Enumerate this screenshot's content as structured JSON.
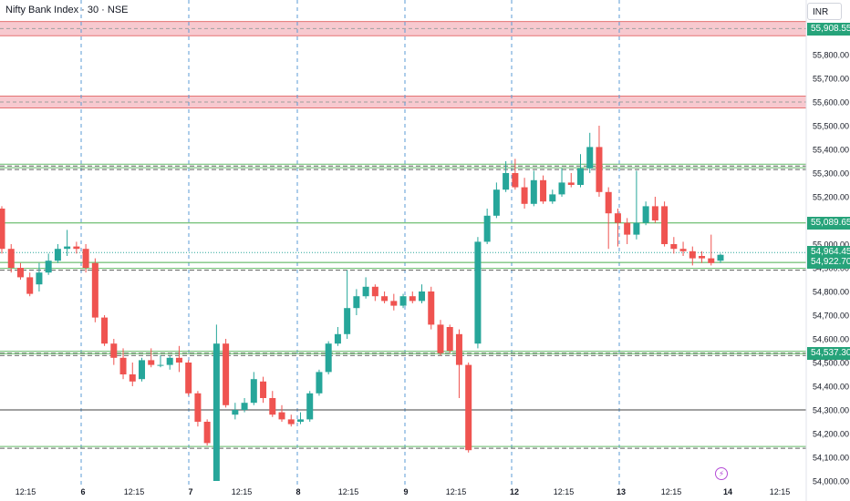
{
  "header": {
    "title": "Nifty Bank Index · 30 · NSE",
    "currency": "INR"
  },
  "chart_data": {
    "type": "candlestick",
    "title": "Nifty Bank Index · 30 · NSE",
    "ylim": [
      54000,
      55980
    ],
    "y_ticks": [
      54000,
      54100,
      54200,
      54300,
      54400,
      54500,
      54600,
      54700,
      54800,
      54900,
      55000,
      55100,
      55200,
      55300,
      55400,
      55500,
      55600,
      55700,
      55800
    ],
    "y_tick_labels": [
      "54,000.00",
      "54,100.00",
      "54,200.00",
      "54,300.00",
      "54,400.00",
      "54,500.00",
      "54,600.00",
      "54,700.00",
      "54,800.00",
      "54,900.00",
      "55,000.00",
      "55,100.00",
      "55,200.00",
      "55,300.00",
      "55,400.00",
      "55,500.00",
      "55,600.00",
      "55,700.00",
      "55,800.00"
    ],
    "x_tick_labels": [
      "12:15",
      "6",
      "12:15",
      "7",
      "12:15",
      "8",
      "12:15",
      "9",
      "12:15",
      "12",
      "12:15",
      "13",
      "12:15",
      "14",
      "12:15"
    ],
    "day_labels": [
      "6",
      "7",
      "8",
      "9",
      "12",
      "13",
      "14"
    ],
    "price_labels": [
      {
        "text": "55,908.55",
        "value": 55908.55
      },
      {
        "text": "55,089.65",
        "value": 55089.65
      },
      {
        "text": "54,964.45",
        "value": 54964.45
      },
      {
        "text": "54,922.70",
        "value": 54922.7
      },
      {
        "text": "54,537.30",
        "value": 54537.3
      }
    ],
    "zones": [
      {
        "from": 55880,
        "to": 55940,
        "color": "#f7c9cf"
      },
      {
        "from": 55575,
        "to": 55625,
        "color": "#f7c9cf"
      }
    ],
    "levels_dashed": [
      55330,
      55315,
      54890,
      54540,
      54530,
      54138
    ],
    "levels_solid": [
      55089.65,
      54922.7,
      54300
    ],
    "current_line": 54964.45,
    "candles": [
      {
        "o": 55150,
        "h": 55160,
        "c": 54980,
        "l": 54960
      },
      {
        "o": 54980,
        "h": 55000,
        "c": 54900,
        "l": 54880
      },
      {
        "o": 54900,
        "h": 54920,
        "c": 54860,
        "l": 54850
      },
      {
        "o": 54860,
        "h": 54880,
        "c": 54790,
        "l": 54780
      },
      {
        "o": 54830,
        "h": 54920,
        "c": 54880,
        "l": 54800
      },
      {
        "o": 54880,
        "h": 54960,
        "c": 54930,
        "l": 54870
      },
      {
        "o": 54930,
        "h": 55000,
        "c": 54980,
        "l": 54920
      },
      {
        "o": 54980,
        "h": 55060,
        "c": 54990,
        "l": 54950
      },
      {
        "o": 54990,
        "h": 55010,
        "c": 54980,
        "l": 54960
      },
      {
        "o": 54980,
        "h": 55000,
        "c": 54900,
        "l": 54880
      },
      {
        "o": 54920,
        "h": 54940,
        "c": 54690,
        "l": 54670
      },
      {
        "o": 54690,
        "h": 54700,
        "c": 54580,
        "l": 54570
      },
      {
        "o": 54580,
        "h": 54600,
        "c": 54520,
        "l": 54490
      },
      {
        "o": 54520,
        "h": 54560,
        "c": 54450,
        "l": 54430
      },
      {
        "o": 54450,
        "h": 54500,
        "c": 54420,
        "l": 54400
      },
      {
        "o": 54430,
        "h": 54520,
        "c": 54510,
        "l": 54420
      },
      {
        "o": 54510,
        "h": 54560,
        "c": 54490,
        "l": 54480
      },
      {
        "o": 54490,
        "h": 54530,
        "c": 54490,
        "l": 54480
      },
      {
        "o": 54490,
        "h": 54530,
        "c": 54520,
        "l": 54470
      },
      {
        "o": 54520,
        "h": 54570,
        "c": 54500,
        "l": 54460
      },
      {
        "o": 54500,
        "h": 54510,
        "c": 54370,
        "l": 54360
      },
      {
        "o": 54370,
        "h": 54380,
        "c": 54250,
        "l": 54230
      },
      {
        "o": 54250,
        "h": 54260,
        "c": 54160,
        "l": 54150
      },
      {
        "o": 54000,
        "h": 54660,
        "c": 54580,
        "l": 54000
      },
      {
        "o": 54580,
        "h": 54600,
        "c": 54320,
        "l": 54310
      },
      {
        "o": 54280,
        "h": 54330,
        "c": 54300,
        "l": 54260
      },
      {
        "o": 54300,
        "h": 54350,
        "c": 54330,
        "l": 54290
      },
      {
        "o": 54330,
        "h": 54460,
        "c": 54430,
        "l": 54320
      },
      {
        "o": 54420,
        "h": 54440,
        "c": 54350,
        "l": 54330
      },
      {
        "o": 54350,
        "h": 54380,
        "c": 54280,
        "l": 54270
      },
      {
        "o": 54290,
        "h": 54320,
        "c": 54260,
        "l": 54250
      },
      {
        "o": 54260,
        "h": 54280,
        "c": 54240,
        "l": 54230
      },
      {
        "o": 54250,
        "h": 54290,
        "c": 54260,
        "l": 54240
      },
      {
        "o": 54260,
        "h": 54380,
        "c": 54370,
        "l": 54250
      },
      {
        "o": 54370,
        "h": 54470,
        "c": 54460,
        "l": 54360
      },
      {
        "o": 54460,
        "h": 54590,
        "c": 54580,
        "l": 54450
      },
      {
        "o": 54580,
        "h": 54650,
        "c": 54620,
        "l": 54570
      },
      {
        "o": 54620,
        "h": 54890,
        "c": 54730,
        "l": 54600
      },
      {
        "o": 54730,
        "h": 54810,
        "c": 54780,
        "l": 54700
      },
      {
        "o": 54780,
        "h": 54860,
        "c": 54820,
        "l": 54770
      },
      {
        "o": 54820,
        "h": 54830,
        "c": 54780,
        "l": 54760
      },
      {
        "o": 54780,
        "h": 54800,
        "c": 54760,
        "l": 54750
      },
      {
        "o": 54760,
        "h": 54790,
        "c": 54740,
        "l": 54720
      },
      {
        "o": 54740,
        "h": 54790,
        "c": 54780,
        "l": 54730
      },
      {
        "o": 54780,
        "h": 54800,
        "c": 54760,
        "l": 54750
      },
      {
        "o": 54760,
        "h": 54830,
        "c": 54800,
        "l": 54750
      },
      {
        "o": 54800,
        "h": 54820,
        "c": 54660,
        "l": 54640
      },
      {
        "o": 54660,
        "h": 54680,
        "c": 54540,
        "l": 54530
      },
      {
        "o": 54650,
        "h": 54660,
        "c": 54550,
        "l": 54540
      },
      {
        "o": 54620,
        "h": 54640,
        "c": 54490,
        "l": 54350
      },
      {
        "o": 54490,
        "h": 54500,
        "c": 54130,
        "l": 54120
      },
      {
        "o": 54580,
        "h": 55030,
        "c": 55010,
        "l": 54560
      },
      {
        "o": 55010,
        "h": 55150,
        "c": 55120,
        "l": 55000
      },
      {
        "o": 55120,
        "h": 55260,
        "c": 55230,
        "l": 55110
      },
      {
        "o": 55230,
        "h": 55350,
        "c": 55300,
        "l": 55220
      },
      {
        "o": 55300,
        "h": 55360,
        "c": 55240,
        "l": 55230
      },
      {
        "o": 55240,
        "h": 55280,
        "c": 55170,
        "l": 55150
      },
      {
        "o": 55170,
        "h": 55310,
        "c": 55270,
        "l": 55160
      },
      {
        "o": 55270,
        "h": 55290,
        "c": 55180,
        "l": 55170
      },
      {
        "o": 55180,
        "h": 55230,
        "c": 55210,
        "l": 55170
      },
      {
        "o": 55210,
        "h": 55320,
        "c": 55260,
        "l": 55200
      },
      {
        "o": 55260,
        "h": 55300,
        "c": 55250,
        "l": 55240
      },
      {
        "o": 55250,
        "h": 55380,
        "c": 55320,
        "l": 55240
      },
      {
        "o": 55320,
        "h": 55470,
        "c": 55410,
        "l": 55300
      },
      {
        "o": 55410,
        "h": 55500,
        "c": 55220,
        "l": 55200
      },
      {
        "o": 55220,
        "h": 55240,
        "c": 55130,
        "l": 54980
      },
      {
        "o": 55130,
        "h": 55150,
        "c": 55090,
        "l": 54990
      },
      {
        "o": 55090,
        "h": 55110,
        "c": 55040,
        "l": 55000
      },
      {
        "o": 55040,
        "h": 55310,
        "c": 55090,
        "l": 55020
      },
      {
        "o": 55090,
        "h": 55180,
        "c": 55160,
        "l": 55080
      },
      {
        "o": 55160,
        "h": 55200,
        "c": 55100,
        "l": 55090
      },
      {
        "o": 55160,
        "h": 55180,
        "c": 55000,
        "l": 54990
      },
      {
        "o": 55000,
        "h": 55030,
        "c": 54980,
        "l": 54960
      },
      {
        "o": 54980,
        "h": 55010,
        "c": 54970,
        "l": 54950
      },
      {
        "o": 54970,
        "h": 54990,
        "c": 54940,
        "l": 54910
      },
      {
        "o": 54950,
        "h": 54970,
        "c": 54940,
        "l": 54920
      },
      {
        "o": 54940,
        "h": 55040,
        "c": 54920,
        "l": 54910
      },
      {
        "o": 54930,
        "h": 54960,
        "c": 54955,
        "l": 54920
      }
    ]
  },
  "colors": {
    "up": "#26a69a",
    "down": "#ef5350",
    "zone": "#f7c9cf",
    "level": "#787b86",
    "green_line": "#4caf50",
    "day_line": "#5b9bd5",
    "badge": "#26a37a"
  }
}
